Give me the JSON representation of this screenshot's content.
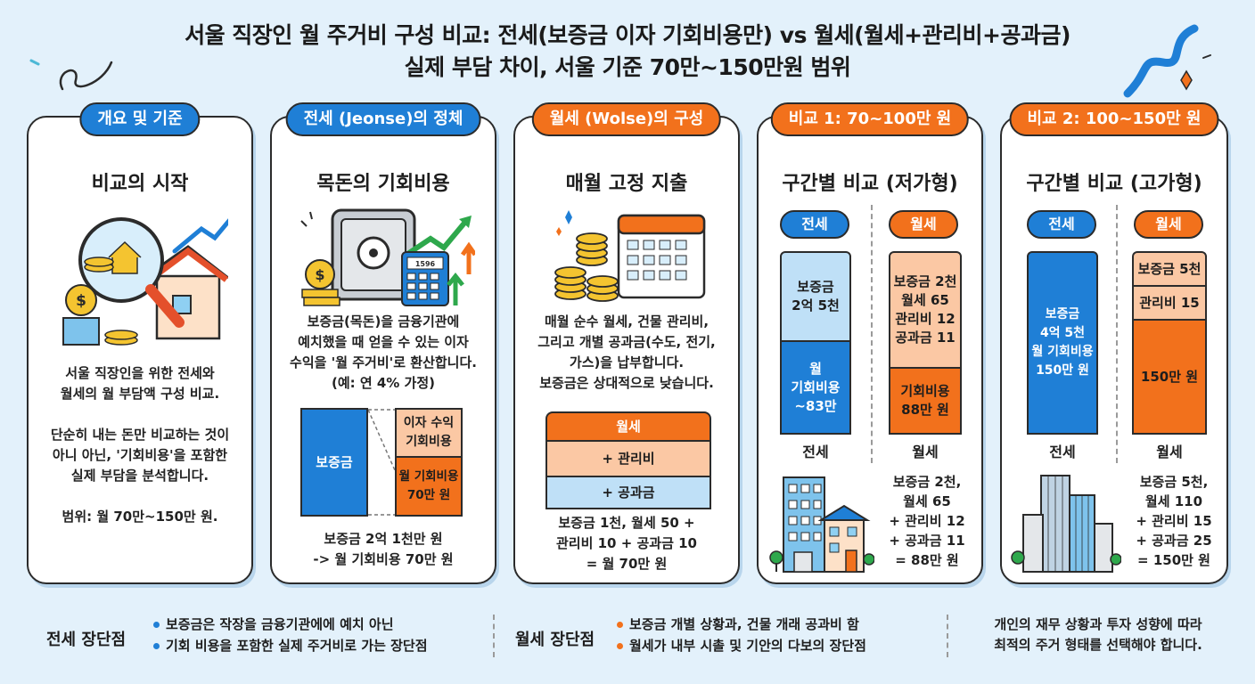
{
  "header": {
    "title_line1": "서울 직장인 월 주거비 구성 비교: 전세(보증금 이자 기회비용만) vs 월세(월세+관리비+공과금)",
    "title_line2": "실제 부담 차이, 서울 기준 70만~150만원 범위"
  },
  "colors": {
    "blue": "#1f7fd6",
    "orange": "#f2711c",
    "light_blue": "#bfe0f7",
    "peach": "#fbc8a4",
    "background": "#e3f1fb"
  },
  "cards": [
    {
      "pill": "개요 및 기준",
      "title": "비교의 시작",
      "icon": "magnifier-house-icon",
      "lines": [
        "서울 직장인을 위한 전세와",
        "월세의 월 부담액 구성 비교.",
        "",
        "단순히 내는 돈만 비교하는 것이",
        "아니 아닌, '기회비용'을 포함한",
        "실제 부담을 분석합니다.",
        "",
        "범위: 월 70만~150만 원."
      ]
    },
    {
      "pill": "전세 (Jeonse)의 정체",
      "title": "목돈의 기회비용",
      "icon": "safe-calculator-icon",
      "calc_label": "1596",
      "lines": [
        "보증금(목돈)을 금융기관에",
        "예치했을 때 얻을 수 있는 이자",
        "수익을 '월 주거비'로 환산합니다.",
        "(예: 연 4% 가정)"
      ],
      "deposit_label": "보증금",
      "interest_label": "이자 수익\n기회비용",
      "monthly_label": "월 기회비용\n70만 원",
      "footer": [
        "보증금 2억 1천만 원",
        "-> 월 기회비용 70만 원"
      ]
    },
    {
      "pill": "월세 (Wolse)의 구성",
      "title": "매월 고정 지출",
      "icon": "coins-calendar-icon",
      "lines": [
        "매월 순수 월세, 건물 관리비,",
        "그리고 개별 공과금(수도, 전기,",
        "가스)을 납부합니다.",
        "보증금은 상대적으로 낮습니다."
      ],
      "stack": [
        "월세",
        "+ 관리비",
        "+ 공과금"
      ],
      "footer": [
        "보증금 1천, 월세 50 +",
        "관리비 10 + 공과금 10",
        "= 월 70만 원"
      ]
    },
    {
      "pill": "비교 1: 70~100만 원",
      "title": "구간별 비교 (저가형)",
      "left_pill": "전세",
      "right_pill": "월세",
      "left_top": "보증금\n2억 5천",
      "left_bottom": "월\n기회비용\n~83만",
      "right_top": "보증금 2천\n월세 65\n관리비 12\n공과금 11",
      "right_bottom": "기회비용\n88만 원",
      "left_label": "전세",
      "right_label": "월세",
      "summary": [
        "보증금 2천,",
        "월세 65",
        "+ 관리비 12",
        "+ 공과금 11",
        "= 88만 원"
      ]
    },
    {
      "pill": "비교 2: 100~150만 원",
      "title": "구간별 비교 (고가형)",
      "left_pill": "전세",
      "right_pill": "월세",
      "left_block": "보증금\n4억 5천\n월 기회비용\n150만 원",
      "right_a": "보증금 5천",
      "right_b": "관리비 15",
      "right_c": "150만 원",
      "left_label": "전세",
      "right_label": "월세",
      "summary": [
        "보증금 5천,",
        "월세 110",
        "+ 관리비 15",
        "+ 공과금 25",
        "= 150만 원"
      ]
    }
  ],
  "bottom": {
    "jeonse_label": "전세 장단점",
    "jeonse_bullets": [
      "보증금은 작장을 금융기관에에 예치 아닌",
      "기회 비용을 포함한 실제 주거비로 가는 장단점"
    ],
    "wolse_label": "월세 장단점",
    "wolse_bullets": [
      "보증금 개별 상황과, 건물 개래 공과비 함",
      "월세가 내부 시촐 및 기안의 다보의 장단점"
    ],
    "conclusion": [
      "개인의 재무 상황과 투자 성향에 따라",
      "최적의 주거 형태를 선택해야 합니다."
    ]
  }
}
